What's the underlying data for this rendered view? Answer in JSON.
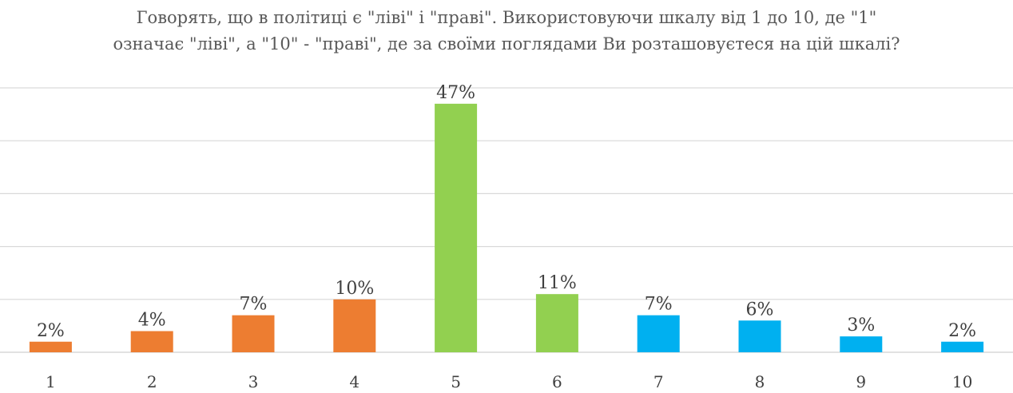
{
  "chart_data": {
    "type": "bar",
    "title_lines": [
      "Говорять, що в політиці є \"ліві\" і \"праві\". Використовуючи шкалу від 1 до 10, де \"1\"",
      "означає \"ліві\", а \"10\" - \"праві\", де за своїми поглядами Ви розташовуєтеся на цій шкалі?"
    ],
    "categories": [
      "1",
      "2",
      "3",
      "4",
      "5",
      "6",
      "7",
      "8",
      "9",
      "10"
    ],
    "values": [
      2,
      4,
      7,
      10,
      47,
      11,
      7,
      6,
      3,
      2
    ],
    "data_labels": [
      "2%",
      "4%",
      "7%",
      "10%",
      "47%",
      "11%",
      "7%",
      "6%",
      "3%",
      "2%"
    ],
    "bar_colors": [
      "#ED7D31",
      "#ED7D31",
      "#ED7D31",
      "#ED7D31",
      "#92D050",
      "#92D050",
      "#00B0F0",
      "#00B0F0",
      "#00B0F0",
      "#00B0F0"
    ],
    "ylim": [
      0,
      50
    ],
    "grid": true,
    "xlabel": "",
    "ylabel": ""
  }
}
